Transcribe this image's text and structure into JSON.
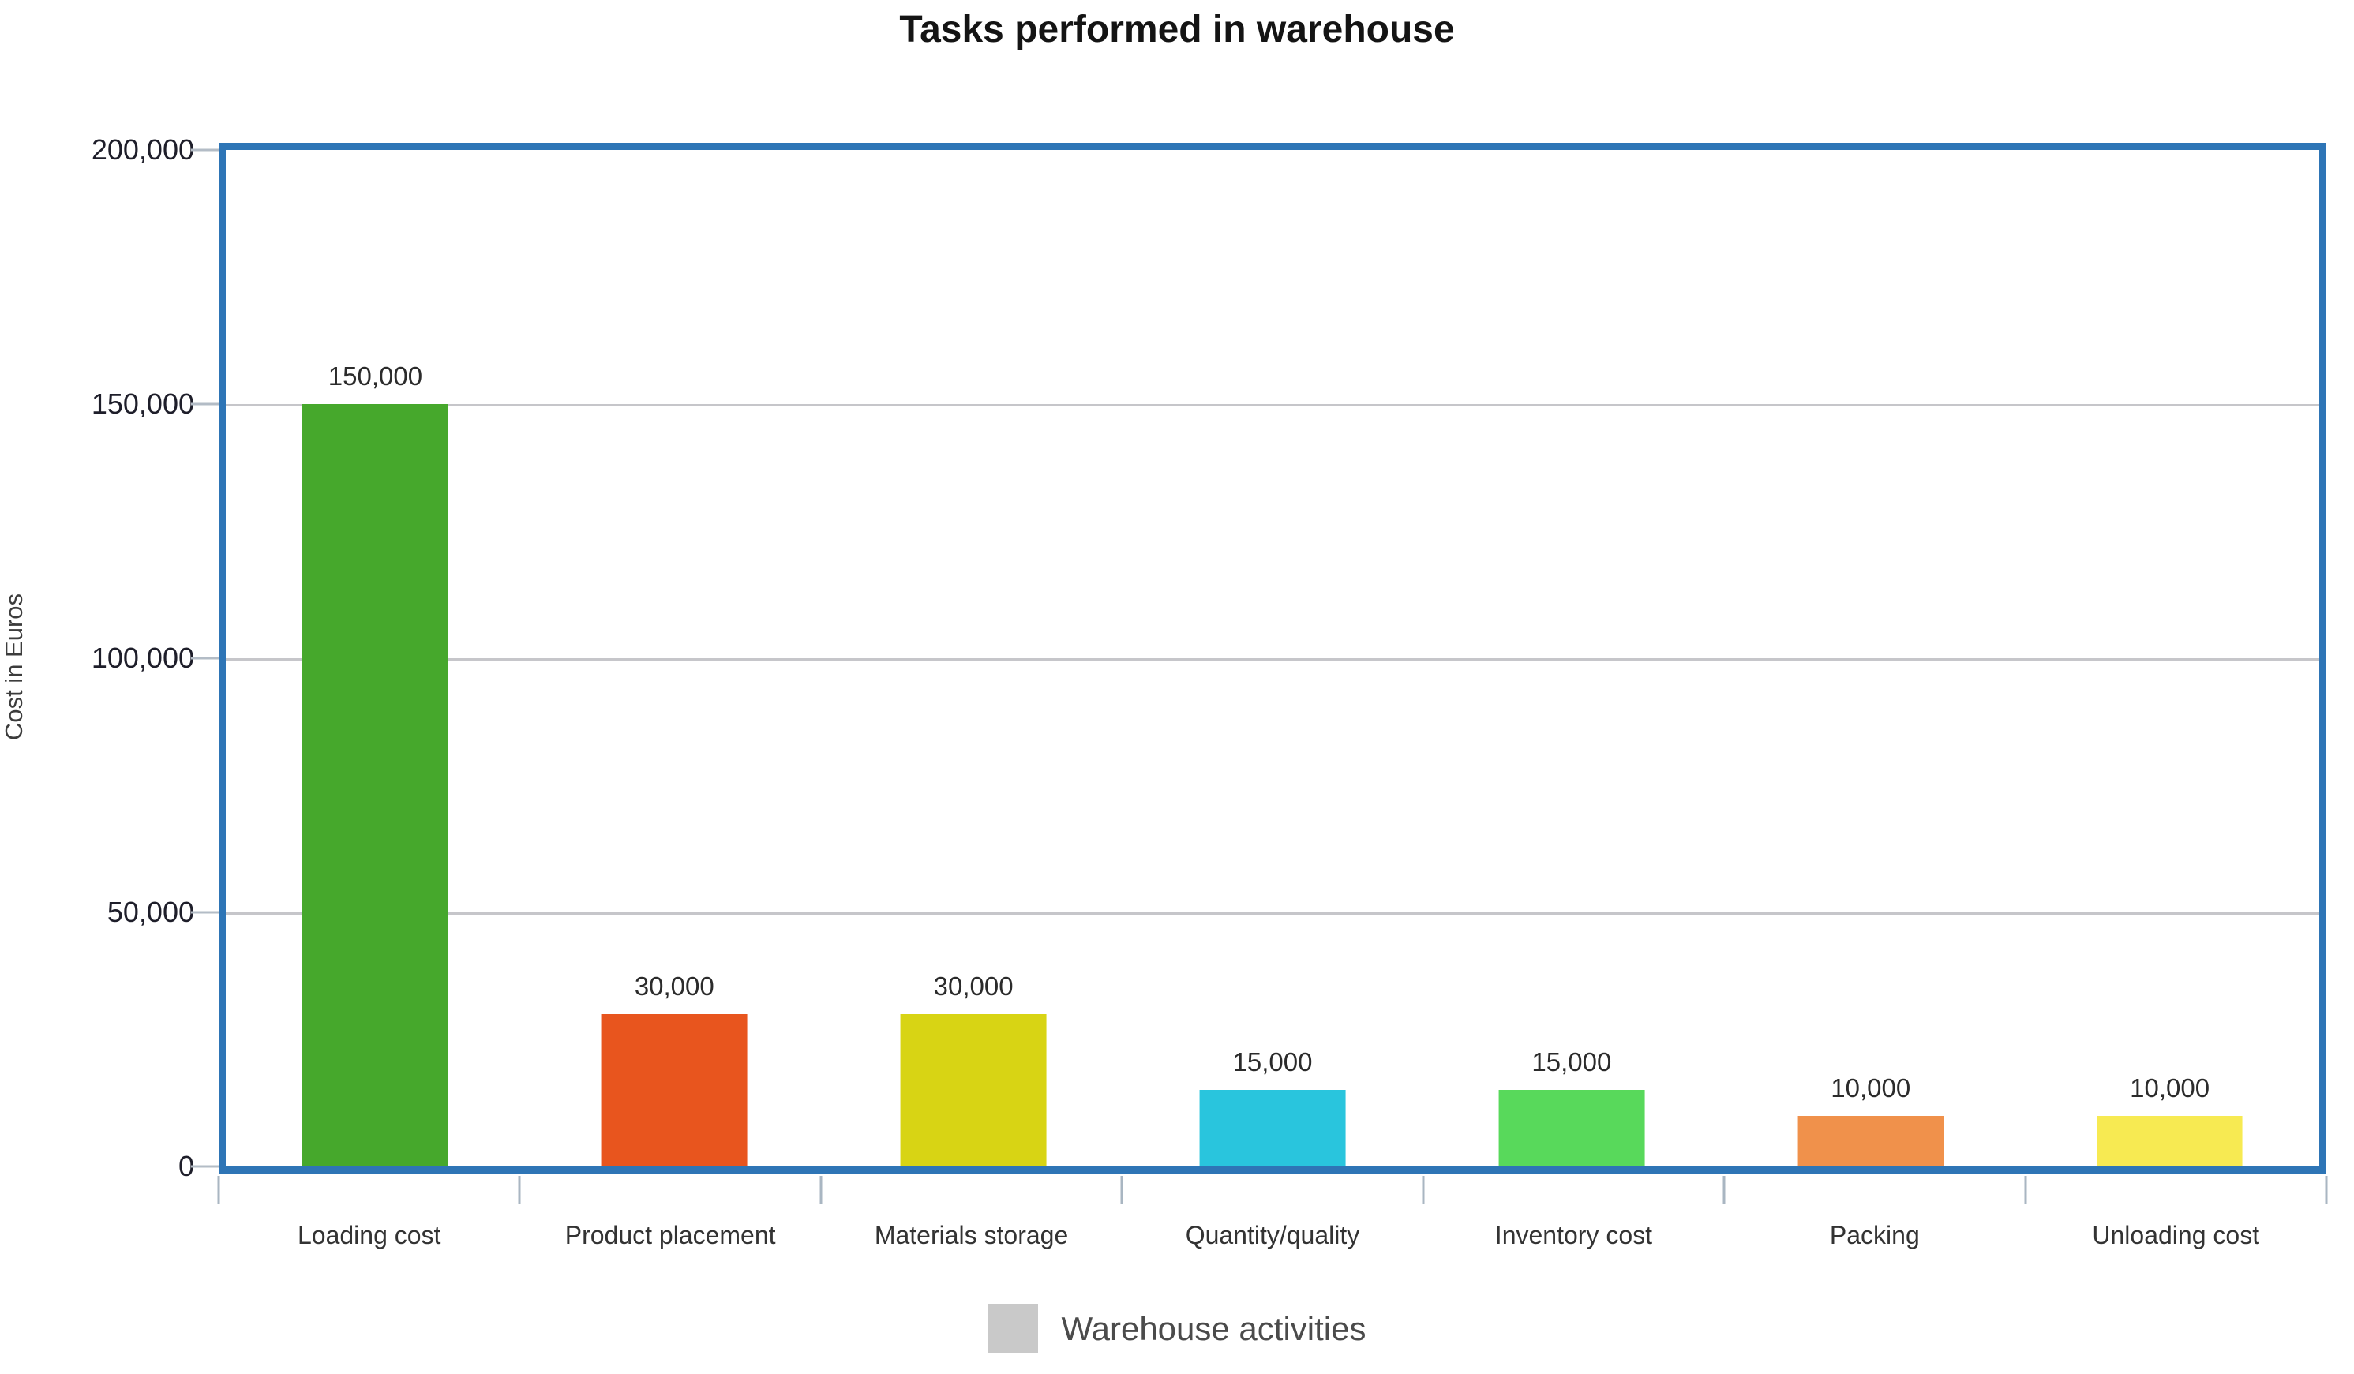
{
  "title": "Tasks performed in warehouse",
  "chart_data": {
    "type": "bar",
    "title": "Tasks performed in warehouse",
    "xlabel": "",
    "ylabel": "Cost in Euros",
    "categories": [
      "Loading cost",
      "Product placement",
      "Materials storage",
      "Quantity/quality",
      "Inventory cost",
      "Packing",
      "Unloading cost"
    ],
    "series": [
      {
        "name": "Warehouse activities",
        "values": [
          150000,
          30000,
          30000,
          15000,
          15000,
          10000,
          10000
        ]
      }
    ],
    "value_labels": [
      "150,000",
      "30,000",
      "30,000",
      "15,000",
      "15,000",
      "10,000",
      "10,000"
    ],
    "bar_colors": [
      "#46a82c",
      "#e8551e",
      "#d8d414",
      "#29c5dd",
      "#58d95b",
      "#f0914b",
      "#f7ea52"
    ],
    "ylim": [
      0,
      200000
    ],
    "y_ticks": [
      "200,000",
      "150,000",
      "100,000",
      "50,000",
      "0"
    ],
    "y_tick_values": [
      200000,
      150000,
      100000,
      50000,
      0
    ],
    "grid": true,
    "gridline_interval": 50000,
    "legend_position": "bottom-center",
    "colors": {
      "plot_border": "#2e75b6",
      "gridline": "#c6c6ca",
      "tick_mark": "#aab4bf",
      "legend_swatch": "#c9c9c9"
    }
  },
  "legend": {
    "label": "Warehouse activities",
    "swatch_color": "#c9c9c9"
  }
}
